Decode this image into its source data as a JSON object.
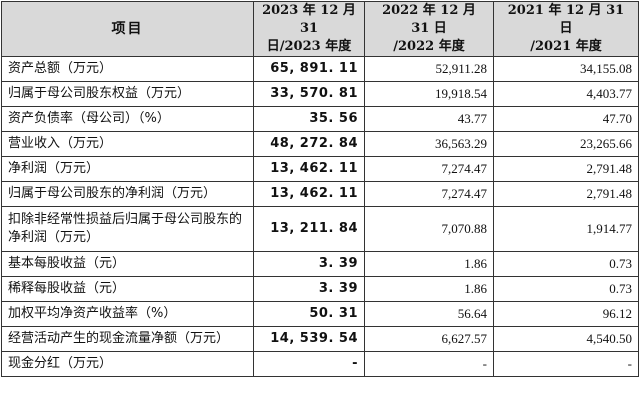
{
  "table": {
    "headers": {
      "item": "项目",
      "col2023_line1": "2023 年 12 月 31",
      "col2023_line2": "日/2023 年度",
      "col2022_line1": "2022 年 12 月 31 日",
      "col2022_line2": "/2022 年度",
      "col2021_line1": "2021 年 12 月 31 日",
      "col2021_line2": "/2021 年度"
    },
    "rows": [
      {
        "label": "资产总额（万元）",
        "v2023": "65, 891. 11",
        "v2022": "52,911.28",
        "v2021": "34,155.08"
      },
      {
        "label": "归属于母公司股东权益（万元）",
        "v2023": "33, 570. 81",
        "v2022": "19,918.54",
        "v2021": "4,403.77"
      },
      {
        "label": "资产负债率（母公司）（%）",
        "v2023": "35. 56",
        "v2022": "43.77",
        "v2021": "47.70"
      },
      {
        "label": "营业收入（万元）",
        "v2023": "48, 272. 84",
        "v2022": "36,563.29",
        "v2021": "23,265.66"
      },
      {
        "label": "净利润（万元）",
        "v2023": "13, 462. 11",
        "v2022": "7,274.47",
        "v2021": "2,791.48"
      },
      {
        "label": "归属于母公司股东的净利润（万元）",
        "v2023": "13, 462. 11",
        "v2022": "7,274.47",
        "v2021": "2,791.48"
      },
      {
        "label": "扣除非经常性损益后归属于母公司股东的净利润（万元）",
        "v2023": "13, 211. 84",
        "v2022": "7,070.88",
        "v2021": "1,914.77"
      },
      {
        "label": "基本每股收益（元）",
        "v2023": "3. 39",
        "v2022": "1.86",
        "v2021": "0.73"
      },
      {
        "label": "稀释每股收益（元）",
        "v2023": "3. 39",
        "v2022": "1.86",
        "v2021": "0.73"
      },
      {
        "label": "加权平均净资产收益率（%）",
        "v2023": "50. 31",
        "v2022": "56.64",
        "v2021": "96.12"
      },
      {
        "label": "经营活动产生的现金流量净额（万元）",
        "v2023": "14, 539. 54",
        "v2022": "6,627.57",
        "v2021": "4,540.50"
      },
      {
        "label": "现金分红（万元）",
        "v2023": "-",
        "v2022": "-",
        "v2021": "-"
      }
    ]
  }
}
